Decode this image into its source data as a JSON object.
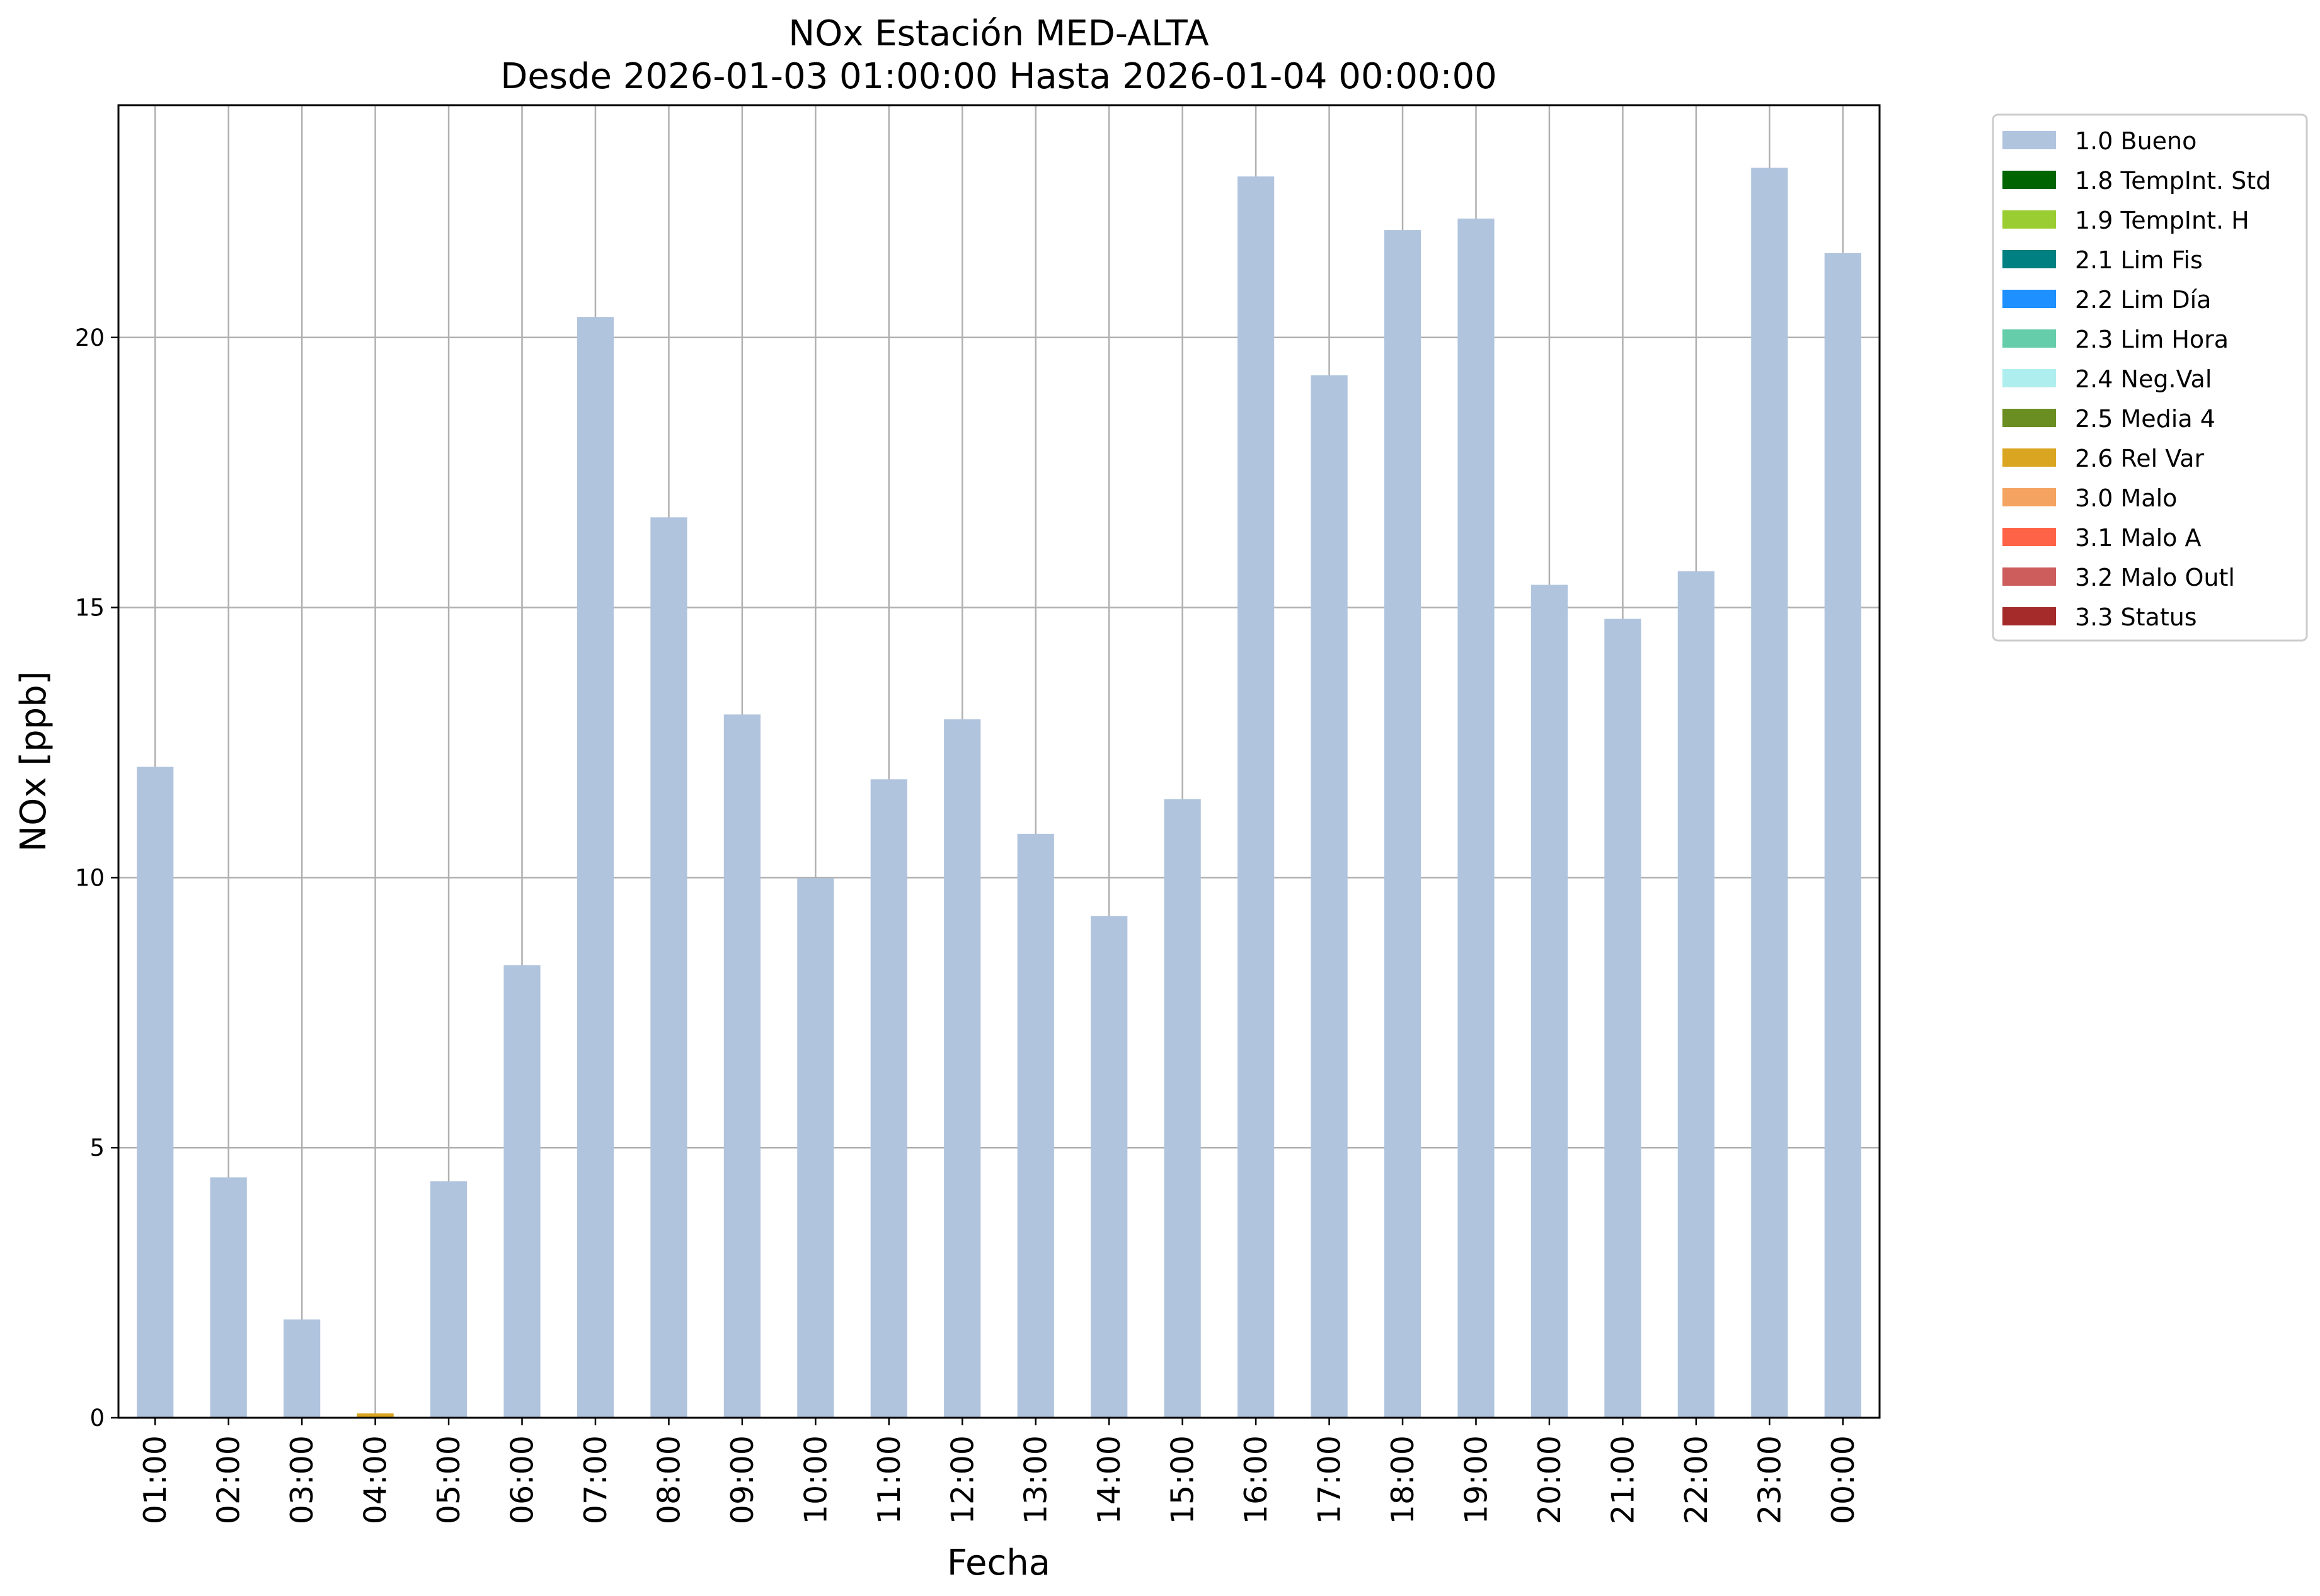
{
  "chart_data": {
    "type": "bar",
    "stacked": true,
    "title_line1": "NOx Estación MED-ALTA",
    "title_line2": "Desde 2026-01-03 01:00:00 Hasta 2026-01-04 00:00:00",
    "xlabel": "Fecha",
    "ylabel": "NOx [ppb]",
    "ylim": [
      0,
      24.3
    ],
    "yticks": [
      0,
      5,
      10,
      15,
      20
    ],
    "grid": true,
    "legend_position": "outside-top-right",
    "categories": [
      "01:00",
      "02:00",
      "03:00",
      "04:00",
      "05:00",
      "06:00",
      "07:00",
      "08:00",
      "09:00",
      "10:00",
      "11:00",
      "12:00",
      "13:00",
      "14:00",
      "15:00",
      "16:00",
      "17:00",
      "18:00",
      "19:00",
      "20:00",
      "21:00",
      "22:00",
      "23:00",
      "00:00"
    ],
    "series": [
      {
        "name": "1.0 Bueno",
        "color": "#b0c4de",
        "values": [
          12.05,
          4.45,
          1.82,
          0,
          4.38,
          8.38,
          20.38,
          16.67,
          13.02,
          9.99,
          11.82,
          12.93,
          10.81,
          9.29,
          11.45,
          22.98,
          19.3,
          21.99,
          22.2,
          15.42,
          14.79,
          15.67,
          23.14,
          21.56
        ]
      },
      {
        "name": "1.8 TempInt. Std",
        "color": "#006400",
        "values": [
          0,
          0,
          0,
          0,
          0,
          0,
          0,
          0,
          0,
          0,
          0,
          0,
          0,
          0,
          0,
          0,
          0,
          0,
          0,
          0,
          0,
          0,
          0,
          0
        ]
      },
      {
        "name": "1.9 TempInt. H",
        "color": "#9acd32",
        "values": [
          0,
          0,
          0,
          0,
          0,
          0,
          0,
          0,
          0,
          0,
          0,
          0,
          0,
          0,
          0,
          0,
          0,
          0,
          0,
          0,
          0,
          0,
          0,
          0
        ]
      },
      {
        "name": "2.1 Lim Fis",
        "color": "#008080",
        "values": [
          0,
          0,
          0,
          0,
          0,
          0,
          0,
          0,
          0,
          0,
          0,
          0,
          0,
          0,
          0,
          0,
          0,
          0,
          0,
          0,
          0,
          0,
          0,
          0
        ]
      },
      {
        "name": "2.2 Lim Día",
        "color": "#1e90ff",
        "values": [
          0,
          0,
          0,
          0,
          0,
          0,
          0,
          0,
          0,
          0,
          0,
          0,
          0,
          0,
          0,
          0,
          0,
          0,
          0,
          0,
          0,
          0,
          0,
          0
        ]
      },
      {
        "name": "2.3 Lim Hora",
        "color": "#66cdaa",
        "values": [
          0,
          0,
          0,
          0,
          0,
          0,
          0,
          0,
          0,
          0,
          0,
          0,
          0,
          0,
          0,
          0,
          0,
          0,
          0,
          0,
          0,
          0,
          0,
          0
        ]
      },
      {
        "name": "2.4 Neg.Val",
        "color": "#afeeee",
        "values": [
          0,
          0,
          0,
          0,
          0,
          0,
          0,
          0,
          0,
          0,
          0,
          0,
          0,
          0,
          0,
          0,
          0,
          0,
          0,
          0,
          0,
          0,
          0,
          0
        ]
      },
      {
        "name": "2.5 Media 4",
        "color": "#6b8e23",
        "values": [
          0,
          0,
          0,
          0,
          0,
          0,
          0,
          0,
          0,
          0,
          0,
          0,
          0,
          0,
          0,
          0,
          0,
          0,
          0,
          0,
          0,
          0,
          0,
          0
        ]
      },
      {
        "name": "2.6 Rel Var",
        "color": "#daa520",
        "values": [
          0,
          0,
          0,
          0.08,
          0,
          0,
          0,
          0,
          0,
          0,
          0,
          0,
          0,
          0,
          0,
          0,
          0,
          0,
          0,
          0,
          0,
          0,
          0,
          0
        ]
      },
      {
        "name": "3.0 Malo",
        "color": "#f4a460",
        "values": [
          0,
          0,
          0,
          0,
          0,
          0,
          0,
          0,
          0,
          0,
          0,
          0,
          0,
          0,
          0,
          0,
          0,
          0,
          0,
          0,
          0,
          0,
          0,
          0
        ]
      },
      {
        "name": "3.1 Malo A",
        "color": "#ff6347",
        "values": [
          0,
          0,
          0,
          0,
          0,
          0,
          0,
          0,
          0,
          0,
          0,
          0,
          0,
          0,
          0,
          0,
          0,
          0,
          0,
          0,
          0,
          0,
          0,
          0
        ]
      },
      {
        "name": "3.2 Malo Outl",
        "color": "#cd5c5c",
        "values": [
          0,
          0,
          0,
          0,
          0,
          0,
          0,
          0,
          0,
          0,
          0,
          0,
          0,
          0,
          0,
          0,
          0,
          0,
          0,
          0,
          0,
          0,
          0,
          0
        ]
      },
      {
        "name": "3.3 Status",
        "color": "#a52a2a",
        "values": [
          0,
          0,
          0,
          0,
          0,
          0,
          0,
          0,
          0,
          0,
          0,
          0,
          0,
          0,
          0,
          0,
          0,
          0,
          0,
          0,
          0,
          0,
          0,
          0
        ]
      }
    ]
  }
}
